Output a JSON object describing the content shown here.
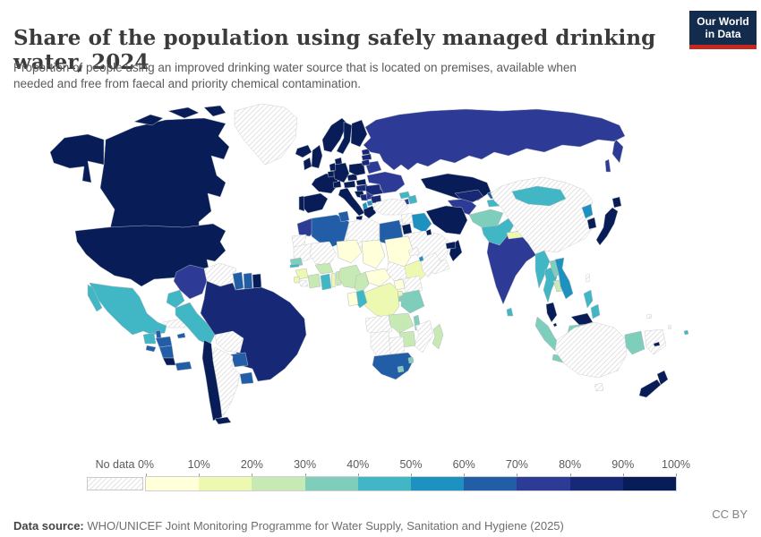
{
  "header": {
    "title": "Share of the population using safely managed drinking water, 2024",
    "subtitle": "Proportion of people using an improved drinking water source that is located on premises, available when needed and free from faecal and priority chemical contamination.",
    "logo": {
      "line1": "Our World",
      "line2": "in Data",
      "bg_color": "#132c4e",
      "accent_color": "#c4281f"
    }
  },
  "footer": {
    "source_label": "Data source:",
    "source_text": " WHO/UNICEF Joint Monitoring Programme for Water Supply, Sanitation and Hygiene (2025)",
    "license": "CC BY"
  },
  "chart_data": {
    "type": "choropleth_map",
    "title": "Share of the population using safely managed drinking water",
    "year": 2024,
    "unit": "% of population",
    "projection": "world",
    "legend": {
      "no_data_label": "No data",
      "no_data_pattern": "diagonal-hatch",
      "tick_labels": [
        "0%",
        "10%",
        "20%",
        "30%",
        "40%",
        "50%",
        "60%",
        "70%",
        "80%",
        "90%",
        "100%"
      ],
      "bins": [
        {
          "range": "0-10%",
          "color": "#ffffd9"
        },
        {
          "range": "10-20%",
          "color": "#edf8b1"
        },
        {
          "range": "20-30%",
          "color": "#c7e9b4"
        },
        {
          "range": "30-40%",
          "color": "#7fcdbb"
        },
        {
          "range": "40-50%",
          "color": "#41b6c4"
        },
        {
          "range": "50-60%",
          "color": "#1d91c0"
        },
        {
          "range": "60-70%",
          "color": "#225ea8"
        },
        {
          "range": "70-80%",
          "color": "#2d3a96"
        },
        {
          "range": "80-90%",
          "color": "#172976"
        },
        {
          "range": "90-100%",
          "color": "#081d58"
        }
      ]
    },
    "countries": {
      "Canada": "90-100%",
      "United States": "90-100%",
      "Greenland": "No data",
      "Iceland": "90-100%",
      "Mexico": "40-50%",
      "Guatemala": "40-50%",
      "Belize": "60-70%",
      "Honduras": "60-70%",
      "El Salvador": "60-70%",
      "Nicaragua": "60-70%",
      "Costa Rica": "90-100%",
      "Panama": "60-70%",
      "Cuba": "No data",
      "Jamaica": "60-70%",
      "Haiti": "40-50%",
      "Dominican Republic": "40-50%",
      "Puerto Rico": "90-100%",
      "Colombia": "70-80%",
      "Venezuela": "No data",
      "Guyana": "60-70%",
      "Suriname": "60-70%",
      "French Guiana": "90-100%",
      "Ecuador": "40-50%",
      "Peru": "40-50%",
      "Brazil": "80-90%",
      "Bolivia": "No data",
      "Paraguay": "60-70%",
      "Uruguay": "60-70%",
      "Argentina": "No data",
      "Chile": "90-100%",
      "Norway": "90-100%",
      "Sweden": "90-100%",
      "Finland": "90-100%",
      "Denmark": "90-100%",
      "United Kingdom": "90-100%",
      "Ireland": "90-100%",
      "France": "90-100%",
      "Spain": "90-100%",
      "Portugal": "90-100%",
      "Germany": "90-100%",
      "Netherlands": "90-100%",
      "Belgium": "90-100%",
      "Switzerland": "90-100%",
      "Italy": "90-100%",
      "Austria": "90-100%",
      "Czechia": "90-100%",
      "Poland": "90-100%",
      "Slovakia": "90-100%",
      "Hungary": "80-90%",
      "Croatia": "90-100%",
      "Bosnia and Herzegovina": "80-90%",
      "Serbia": "70-80%",
      "Albania": "50-60%",
      "North Macedonia": "50-60%",
      "Greece": "90-100%",
      "Bulgaria": "80-90%",
      "Romania": "80-90%",
      "Moldova": "70-80%",
      "Ukraine": "70-80%",
      "Belarus": "70-80%",
      "Estonia": "80-90%",
      "Latvia": "80-90%",
      "Lithuania": "80-90%",
      "Russia": "70-80%",
      "Kazakhstan": "90-100%",
      "Georgia": "40-50%",
      "Armenia": "70-80%",
      "Azerbaijan": "40-50%",
      "Turkey": "No data",
      "Syria": "No data",
      "Lebanon": "No data",
      "Israel": "90-100%",
      "Jordan": "90-100%",
      "Iraq": "50-60%",
      "Saudi Arabia": "No data",
      "Yemen": "No data",
      "Oman": "90-100%",
      "United Arab Emirates": "90-100%",
      "Kuwait": "90-100%",
      "Iran": "90-100%",
      "Turkmenistan": "70-80%",
      "Uzbekistan": "80-90%",
      "Kyrgyzstan": "60-70%",
      "Tajikistan": "40-50%",
      "Afghanistan": "30-40%",
      "Pakistan": "40-50%",
      "India": "70-80%",
      "Nepal": "10-20%",
      "Bhutan": "30-40%",
      "Bangladesh": "40-50%",
      "Sri Lanka": "40-50%",
      "Myanmar": "40-50%",
      "Thailand": "40-50%",
      "Laos": "30-40%",
      "Cambodia": "20-30%",
      "Vietnam": "50-60%",
      "Malaysia": "90-100%",
      "Singapore": "90-100%",
      "Indonesia": "30-40%",
      "Papua New Guinea": "No data",
      "Philippines": "40-50%",
      "Taiwan": "No data",
      "China": "No data",
      "Mongolia": "40-50%",
      "North Korea": "50-60%",
      "South Korea": "90-100%",
      "Japan": "90-100%",
      "Morocco": "70-80%",
      "Western Sahara": "No data",
      "Algeria": "60-70%",
      "Tunisia": "60-70%",
      "Libya": "No data",
      "Egypt": "60-70%",
      "Mauritania": "No data",
      "Mali": "No data",
      "Niger": "0-10%",
      "Chad": "0-10%",
      "Sudan": "0-10%",
      "Eritrea": "No data",
      "Ethiopia": "10-20%",
      "Somalia": "No data",
      "Djibouti": "50-60%",
      "Senegal": "30-40%",
      "Gambia": "40-50%",
      "Guinea": "10-20%",
      "Sierra Leone": "10-20%",
      "Liberia": "No data",
      "Cote d'Ivoire": "20-30%",
      "Burkina Faso": "20-30%",
      "Ghana": "40-50%",
      "Togo": "10-20%",
      "Benin": "20-30%",
      "Nigeria": "20-30%",
      "Cameroon": "20-30%",
      "Central African Republic": "0-10%",
      "South Sudan": "No data",
      "Uganda": "0-10%",
      "Kenya": "No data",
      "Tanzania": "30-40%",
      "Rwanda": "10-20%",
      "Burundi": "30-40%",
      "Democratic Republic of Congo": "10-20%",
      "Congo": "40-50%",
      "Gabon": "0-10%",
      "Angola": "No data",
      "Zambia": "20-30%",
      "Malawi": "30-40%",
      "Mozambique": "No data",
      "Zimbabwe": "20-30%",
      "Botswana": "No data",
      "Namibia": "No data",
      "South Africa": "60-70%",
      "Lesotho": "30-40%",
      "Eswatini": "30-40%",
      "Madagascar": "20-30%",
      "Australia": "No data",
      "New Zealand": "90-100%",
      "Fiji": "40-50%",
      "New Caledonia": "90-100%",
      "Vanuatu": "No data",
      "Solomon Islands": "No data"
    }
  }
}
